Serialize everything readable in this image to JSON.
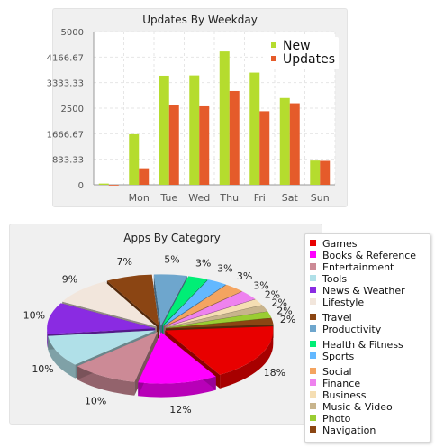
{
  "chart_data": [
    {
      "type": "bar",
      "title": "Updates By Weekday",
      "categories": [
        "",
        "Mon",
        "Tue",
        "Wed",
        "Thu",
        "Fri",
        "Sat",
        "Sun"
      ],
      "series": [
        {
          "name": "New",
          "color": "#b5dc2e",
          "values": [
            40,
            1650,
            3560,
            3570,
            4350,
            3660,
            2830,
            790
          ]
        },
        {
          "name": "Updates",
          "color": "#e55b2a",
          "values": [
            0,
            540,
            2610,
            2560,
            3060,
            2400,
            2660,
            780
          ]
        }
      ],
      "ylim": [
        0,
        5000
      ],
      "yticks": [
        "0",
        "833.33",
        "1666.67",
        "2500",
        "3333.33",
        "4166.67",
        "5000"
      ],
      "legend": "top-right",
      "grid": true
    },
    {
      "type": "pie",
      "title": "Apps By Category",
      "labels": [
        "Games",
        "Books & Reference",
        "Entertainment",
        "Tools",
        "News & Weather",
        "Lifestyle",
        "Travel",
        "Productivity",
        "Health & Fitness",
        "Sports",
        "Social",
        "Finance",
        "Business",
        "Music & Video",
        "Photo",
        "Navigation"
      ],
      "values": [
        18,
        12,
        10,
        10,
        10,
        9,
        7,
        5,
        3,
        3,
        3,
        3,
        2,
        2,
        2,
        2
      ],
      "value_labels": [
        "18%",
        "12%",
        "10%",
        "10%",
        "10%",
        "9%",
        "7%",
        "5%",
        "3%",
        "3%",
        "3%",
        "3%",
        "2%",
        "2%",
        "2%",
        "2%"
      ],
      "colors": [
        "#e80000",
        "#ff00ff",
        "#cc8a96",
        "#b0e0e8",
        "#8a2be2",
        "#f2e6dc",
        "#8b4513",
        "#6ea6cd",
        "#00ee76",
        "#63b8ff",
        "#f4a460",
        "#ee82ee",
        "#f5deb3",
        "#c8b48c",
        "#9acd32",
        "#8b4513"
      ],
      "legend": "right"
    }
  ]
}
